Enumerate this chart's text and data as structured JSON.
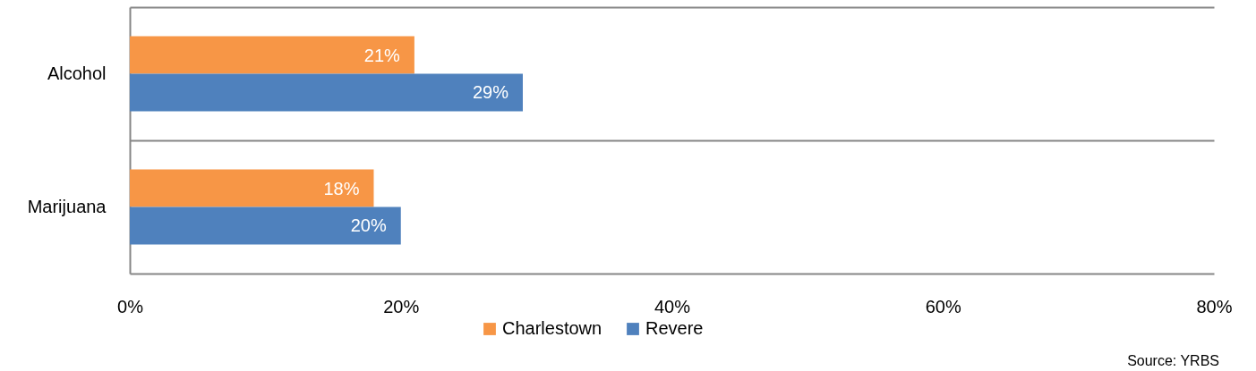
{
  "chart_data": {
    "type": "bar",
    "orientation": "horizontal",
    "categories": [
      "Alcohol",
      "Marijuana"
    ],
    "series": [
      {
        "name": "Charlestown",
        "color": "#f79646",
        "values": [
          21,
          18
        ],
        "value_labels": [
          "21%",
          "18%"
        ]
      },
      {
        "name": "Revere",
        "color": "#4f81bd",
        "values": [
          29,
          20
        ],
        "value_labels": [
          "29%",
          "20%"
        ]
      }
    ],
    "xlim": [
      0,
      80
    ],
    "xticks": [
      {
        "value": 0,
        "label": "0%"
      },
      {
        "value": 20,
        "label": "20%"
      },
      {
        "value": 40,
        "label": "40%"
      },
      {
        "value": 60,
        "label": "60%"
      },
      {
        "value": 80,
        "label": "80%"
      }
    ],
    "grid": "y",
    "legend": "bottom",
    "annotations": [
      "Source: YRBS"
    ]
  }
}
